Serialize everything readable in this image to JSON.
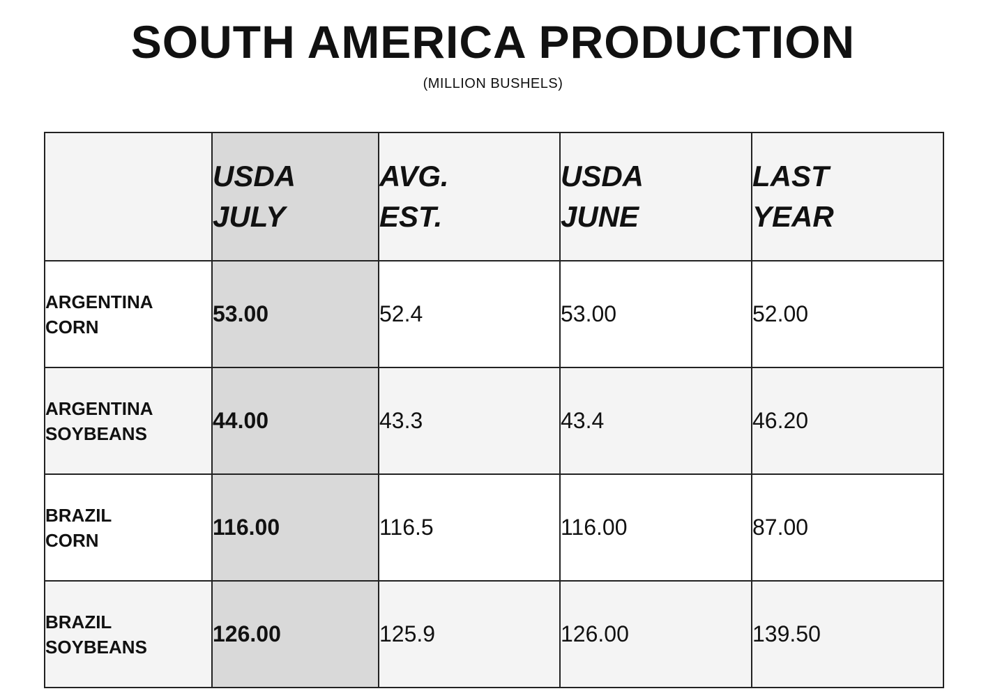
{
  "header": {
    "title": "SOUTH AMERICA PRODUCTION",
    "subtitle": "(MILLION BUSHELS)"
  },
  "chart_data": {
    "type": "table",
    "title": "SOUTH AMERICA PRODUCTION",
    "subtitle": "(MILLION BUSHELS)",
    "columns": [
      "",
      "USDA JULY",
      "AVG. EST.",
      "USDA JUNE",
      "LAST YEAR"
    ],
    "rows": [
      {
        "label": "ARGENTINA CORN",
        "values": [
          "53.00",
          "52.4",
          "53.00",
          "52.00"
        ]
      },
      {
        "label": "ARGENTINA SOYBEANS",
        "values": [
          "44.00",
          "43.3",
          "43.4",
          "46.20"
        ]
      },
      {
        "label": "BRAZIL CORN",
        "values": [
          "116.00",
          "116.5",
          "116.00",
          "87.00"
        ]
      },
      {
        "label": "BRAZIL SOYBEANS",
        "values": [
          "126.00",
          "125.9",
          "126.00",
          "139.50"
        ]
      }
    ],
    "highlight_column": "USDA JULY",
    "colors": {
      "highlight": "#d9d9d9",
      "header_bg": "#f4f4f4",
      "alt_row_bg": "#f4f4f4",
      "border": "#222222"
    }
  }
}
